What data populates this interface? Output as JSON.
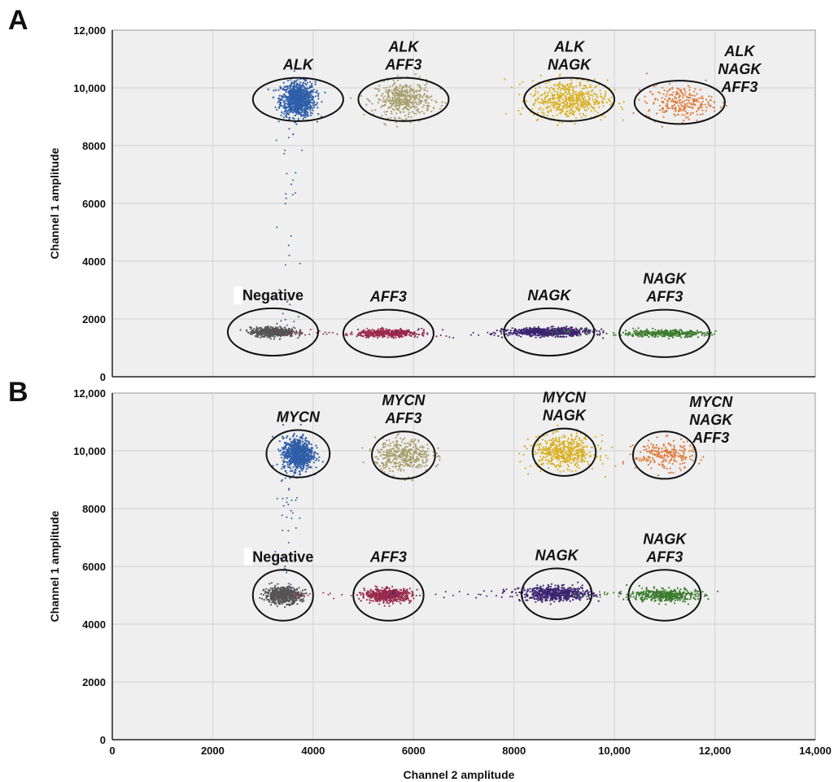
{
  "chart_data": [
    {
      "type": "scatter",
      "panel_label": "A",
      "xlabel": "",
      "ylabel": "Channel 1 amplitude",
      "xlim": [
        0,
        14000
      ],
      "ylim": [
        0,
        12000
      ],
      "xticks": [
        "",
        "",
        "",
        "",
        "",
        "",
        "",
        ""
      ],
      "yticks": [
        "0",
        "2000",
        "4000",
        "6000",
        "8000",
        "10,000",
        "12,000"
      ],
      "grid": true,
      "clusters": [
        {
          "label_lines": [
            "ALK"
          ],
          "center": [
            3700,
            9600
          ],
          "spread": [
            170,
            300
          ],
          "color": "#2f5ea8",
          "count": 900,
          "ring_rx": 900,
          "ring_ry": 750
        },
        {
          "label_lines": [
            "ALK",
            "AFF3"
          ],
          "center": [
            5800,
            9600
          ],
          "spread": [
            280,
            300
          ],
          "color": "#a89f6e",
          "count": 450,
          "ring_rx": 900,
          "ring_ry": 750
        },
        {
          "label_lines": [
            "ALK",
            "NAGK"
          ],
          "center": [
            9100,
            9600
          ],
          "spread": [
            380,
            330
          ],
          "color": "#d9b021",
          "count": 550,
          "ring_rx": 900,
          "ring_ry": 750
        },
        {
          "label_lines": [
            "ALK",
            "NAGK",
            "AFF3"
          ],
          "center": [
            11300,
            9500
          ],
          "spread": [
            330,
            280
          ],
          "color": "#e07b39",
          "count": 250,
          "ring_rx": 900,
          "ring_ry": 750
        },
        {
          "label_lines": [
            "Negative"
          ],
          "center": [
            3200,
            1550
          ],
          "spread": [
            220,
            80
          ],
          "color": "#555555",
          "count": 550,
          "ring_rx": 900,
          "ring_ry": 820
        },
        {
          "label_lines": [
            "AFF3"
          ],
          "center": [
            5500,
            1500
          ],
          "spread": [
            300,
            60
          ],
          "color": "#9a2a4e",
          "count": 450,
          "ring_rx": 900,
          "ring_ry": 820
        },
        {
          "label_lines": [
            "NAGK"
          ],
          "center": [
            8700,
            1550
          ],
          "spread": [
            420,
            70
          ],
          "color": "#3d2470",
          "count": 650,
          "ring_rx": 900,
          "ring_ry": 820
        },
        {
          "label_lines": [
            "NAGK",
            "AFF3"
          ],
          "center": [
            11000,
            1500
          ],
          "spread": [
            420,
            60
          ],
          "color": "#3b7d2e",
          "count": 350,
          "ring_rx": 900,
          "ring_ry": 820
        }
      ]
    },
    {
      "type": "scatter",
      "panel_label": "B",
      "xlabel": "Channel 2 amplitude",
      "ylabel": "Channel 1 amplitude",
      "xlim": [
        0,
        14000
      ],
      "ylim": [
        0,
        12000
      ],
      "xticks": [
        "0",
        "2000",
        "4000",
        "6000",
        "8000",
        "10,000",
        "12,000",
        "14,000"
      ],
      "yticks": [
        "0",
        "2000",
        "4000",
        "6000",
        "8000",
        "10,000",
        "12,000"
      ],
      "grid": true,
      "clusters": [
        {
          "label_lines": [
            "MYCN"
          ],
          "center": [
            3700,
            9900
          ],
          "spread": [
            150,
            280
          ],
          "color": "#2f5ea8",
          "count": 800,
          "ring_rx": 630,
          "ring_ry": 820
        },
        {
          "label_lines": [
            "MYCN",
            "AFF3"
          ],
          "center": [
            5800,
            9850
          ],
          "spread": [
            280,
            280
          ],
          "color": "#a89f6e",
          "count": 400,
          "ring_rx": 630,
          "ring_ry": 820
        },
        {
          "label_lines": [
            "MYCN",
            "NAGK"
          ],
          "center": [
            9000,
            9950
          ],
          "spread": [
            320,
            280
          ],
          "color": "#d9b021",
          "count": 500,
          "ring_rx": 630,
          "ring_ry": 820
        },
        {
          "label_lines": [
            "MYCN",
            "NAGK",
            "AFF3"
          ],
          "center": [
            11000,
            9850
          ],
          "spread": [
            300,
            250
          ],
          "color": "#e07b39",
          "count": 230,
          "ring_rx": 630,
          "ring_ry": 820
        },
        {
          "label_lines": [
            "Negative"
          ],
          "center": [
            3400,
            5000
          ],
          "spread": [
            180,
            140
          ],
          "color": "#555555",
          "count": 600,
          "ring_rx": 600,
          "ring_ry": 880
        },
        {
          "label_lines": [
            "AFF3"
          ],
          "center": [
            5500,
            5000
          ],
          "spread": [
            230,
            110
          ],
          "color": "#9a2a4e",
          "count": 550,
          "ring_rx": 700,
          "ring_ry": 880
        },
        {
          "label_lines": [
            "NAGK"
          ],
          "center": [
            8850,
            5050
          ],
          "spread": [
            350,
            120
          ],
          "color": "#3d2470",
          "count": 600,
          "ring_rx": 700,
          "ring_ry": 880
        },
        {
          "label_lines": [
            "NAGK",
            "AFF3"
          ],
          "center": [
            11000,
            5000
          ],
          "spread": [
            320,
            110
          ],
          "color": "#3b7d2e",
          "count": 400,
          "ring_rx": 720,
          "ring_ry": 880
        }
      ]
    }
  ]
}
